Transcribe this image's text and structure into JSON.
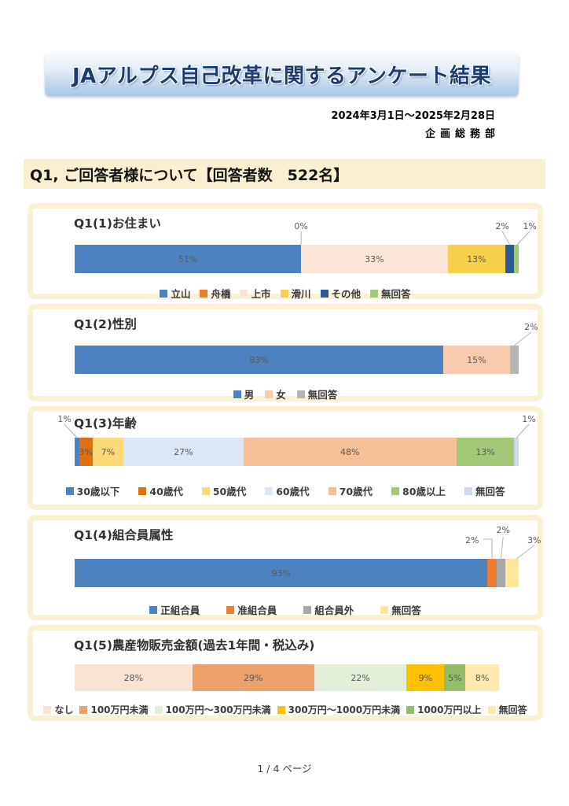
{
  "page": {
    "title": "JAアルプス自己改革に関するアンケート結果",
    "period": "2024年3月1日～2025年2月28日",
    "department": "企画総務部",
    "section_heading": "Q1, ご回答者様について【回答者数　522名】",
    "footer": "1 / 4 ページ"
  },
  "chart_data": [
    {
      "type": "bar",
      "subtype": "stacked-horizontal-percent",
      "title": "Q1(1)お住まい",
      "unit": "%",
      "legend_position": "bottom",
      "categories": [
        "立山",
        "舟橋",
        "上市",
        "滑川",
        "その他",
        "無回答"
      ],
      "values": [
        51,
        0,
        33,
        13,
        2,
        1
      ],
      "colors": [
        "#4d82c0",
        "#ed7d31",
        "#fbe5d6",
        "#f6d04b",
        "#2d5a9a",
        "#a0c97a"
      ],
      "inside_labels": [
        true,
        false,
        true,
        true,
        false,
        false
      ],
      "callouts": [
        {
          "text": "0%",
          "anchor": 51,
          "label_x": 51,
          "tier": 0
        },
        {
          "text": "2%",
          "anchor": 98,
          "label_x": 96.3,
          "tier": 0
        },
        {
          "text": "1%",
          "anchor": 99.6,
          "label_x": 102.5,
          "tier": 0
        }
      ]
    },
    {
      "type": "bar",
      "subtype": "stacked-horizontal-percent",
      "title": "Q1(2)性別",
      "unit": "%",
      "legend_position": "bottom",
      "categories": [
        "男",
        "女",
        "無回答"
      ],
      "values": [
        83,
        15,
        2
      ],
      "colors": [
        "#4d82c0",
        "#f8cbad",
        "#b5b5b5"
      ],
      "inside_labels": [
        true,
        true,
        false
      ],
      "callouts": [
        {
          "text": "2%",
          "anchor": 99,
          "label_x": 102.8,
          "tier": 0
        }
      ]
    },
    {
      "type": "bar",
      "subtype": "stacked-horizontal-percent",
      "title": "Q1(3)年齢",
      "unit": "%",
      "legend_position": "bottom",
      "categories": [
        "30歳以下",
        "40歳代",
        "50歳代",
        "60歳代",
        "70歳代",
        "80歳以上",
        "無回答"
      ],
      "values": [
        1,
        3,
        7,
        27,
        48,
        13,
        1
      ],
      "colors": [
        "#4d82c0",
        "#e3700f",
        "#fbd975",
        "#dbe7f4",
        "#f5bf98",
        "#a2c878",
        "#ccd7eb"
      ],
      "inside_labels": [
        false,
        true,
        true,
        true,
        true,
        true,
        false
      ],
      "callouts": [
        {
          "text": "1%",
          "anchor": 0.5,
          "label_x": -2.3,
          "tier": 0
        },
        {
          "text": "1%",
          "anchor": 99.5,
          "label_x": 102.3,
          "tier": 0
        }
      ]
    },
    {
      "type": "bar",
      "subtype": "stacked-horizontal-percent",
      "title": "Q1(4)組合員属性",
      "unit": "%",
      "legend_position": "bottom",
      "categories": [
        "正組合員",
        "准組合員",
        "組合員外",
        "無回答"
      ],
      "values": [
        93,
        2,
        2,
        3
      ],
      "colors": [
        "#4d82c0",
        "#ed7d31",
        "#a8a8a8",
        "#ffe699"
      ],
      "inside_labels": [
        true,
        false,
        false,
        false
      ],
      "callouts": [
        {
          "text": "2%",
          "anchor": 94,
          "label_x": 89.5,
          "tier": 0,
          "elbow": true
        },
        {
          "text": "2%",
          "anchor": 96,
          "label_x": 96.5,
          "tier": 1
        },
        {
          "text": "3%",
          "anchor": 99.5,
          "label_x": 103.5,
          "tier": 0
        }
      ]
    },
    {
      "type": "bar",
      "subtype": "stacked-horizontal-percent",
      "title": "Q1(5)農産物販売金額(過去1年間・税込み)",
      "unit": "%",
      "legend_position": "bottom",
      "categories": [
        "なし",
        "100万円未満",
        "100万円～300万円未満",
        "300万円～1000万円未満",
        "1000万円以上",
        "無回答"
      ],
      "values": [
        28,
        29,
        22,
        9,
        5,
        8
      ],
      "colors": [
        "#fbe3d4",
        "#eca06a",
        "#e3efd9",
        "#fdc101",
        "#93bd68",
        "#fee9af"
      ],
      "inside_labels": [
        true,
        true,
        true,
        true,
        true,
        true
      ],
      "callouts": []
    }
  ]
}
